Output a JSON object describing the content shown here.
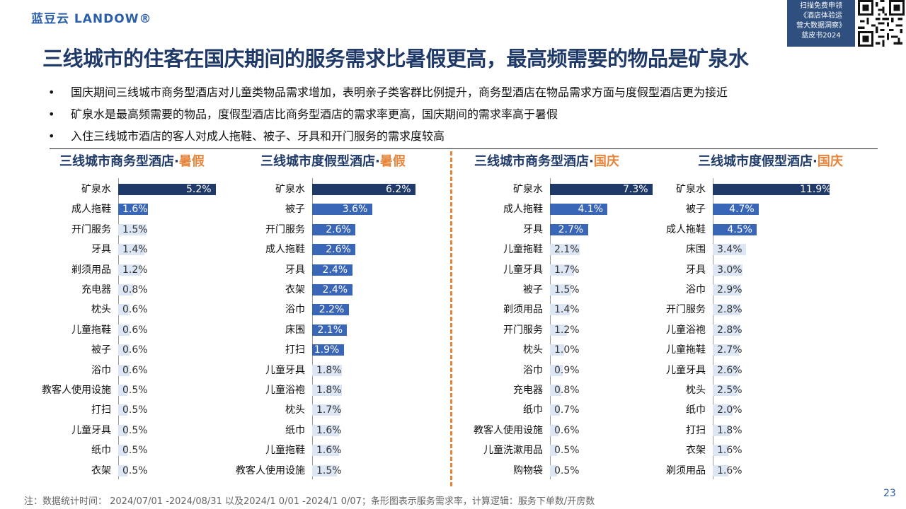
{
  "logo": "蓝豆云 LANDOW®",
  "promo": [
    "扫描免费申领",
    "《酒店体验运",
    "营大数据洞察》",
    "蓝皮书2024"
  ],
  "title": "三线城市的住客在国庆期间的服务需求比暑假更高，最高频需要的物品是矿泉水",
  "bullets": [
    "国庆期间三线城市商务型酒店对儿童类物品需求增加，表明亲子类客群比例提升，商务型酒店在物品需求方面与度假型酒店更为接近",
    "矿泉水是最高频需要的物品，度假型酒店比商务型酒店的需求率更高，国庆期间的需求率高于暑假",
    "入住三线城市酒店的客人对成人拖鞋、被子、牙具和开门服务的需求度较高"
  ],
  "colors": {
    "dark": "#1f3a68",
    "mid": "#3a66b8",
    "light": "#dce6f5",
    "accent": "#e8843a"
  },
  "chart_data": [
    {
      "type": "bar",
      "orientation": "horizontal",
      "title_main": "三线城市商务型酒店·",
      "title_accent": "暑假",
      "categories": [
        "矿泉水",
        "成人拖鞋",
        "开门服务",
        "牙具",
        "剃须用品",
        "充电器",
        "枕头",
        "儿童拖鞋",
        "被子",
        "浴巾",
        "教客人使用设施",
        "打扫",
        "儿童牙具",
        "纸巾",
        "衣架"
      ],
      "values": [
        5.2,
        1.6,
        1.5,
        1.4,
        1.2,
        0.8,
        0.6,
        0.6,
        0.6,
        0.6,
        0.5,
        0.5,
        0.5,
        0.5,
        0.5
      ],
      "labels": [
        "5.2%",
        "1.6%",
        "1.5%",
        "1.4%",
        "1.2%",
        "0.8%",
        "0.6%",
        "0.6%",
        "0.6%",
        "0.6%",
        "0.5%",
        "0.5%",
        "0.5%",
        "0.5%",
        "0.5%"
      ],
      "unit": "%"
    },
    {
      "type": "bar",
      "orientation": "horizontal",
      "title_main": "三线城市度假型酒店·",
      "title_accent": "暑假",
      "categories": [
        "矿泉水",
        "被子",
        "开门服务",
        "成人拖鞋",
        "牙具",
        "衣架",
        "浴巾",
        "床围",
        "打扫",
        "儿童牙具",
        "儿童浴袍",
        "枕头",
        "纸巾",
        "儿童拖鞋",
        "教客人使用设施"
      ],
      "values": [
        6.2,
        3.6,
        2.6,
        2.6,
        2.4,
        2.4,
        2.2,
        2.1,
        1.9,
        1.8,
        1.8,
        1.7,
        1.6,
        1.6,
        1.5
      ],
      "labels": [
        "6.2%",
        "3.6%",
        "2.6%",
        "2.6%",
        "2.4%",
        "2.4%",
        "2.2%",
        "2.1%",
        "1.9%",
        "1.8%",
        "1.8%",
        "1.7%",
        "1.6%",
        "1.6%",
        "1.5%"
      ],
      "unit": "%"
    },
    {
      "type": "bar",
      "orientation": "horizontal",
      "title_main": "三线城市商务型酒店·",
      "title_accent": "国庆",
      "categories": [
        "矿泉水",
        "成人拖鞋",
        "牙具",
        "儿童拖鞋",
        "儿童牙具",
        "被子",
        "剃须用品",
        "开门服务",
        "枕头",
        "浴巾",
        "充电器",
        "纸巾",
        "教客人使用设施",
        "儿童洗漱用品",
        "购物袋"
      ],
      "values": [
        7.3,
        4.1,
        2.7,
        2.1,
        1.7,
        1.5,
        1.4,
        1.2,
        1.0,
        0.9,
        0.8,
        0.7,
        0.6,
        0.5,
        0.5
      ],
      "labels": [
        "7.3%",
        "4.1%",
        "2.7%",
        "2.1%",
        "1.7%",
        "1.5%",
        "1.4%",
        "1.2%",
        "1.0%",
        "0.9%",
        "0.8%",
        "0.7%",
        "0.6%",
        "0.5%",
        "0.5%"
      ],
      "unit": "%"
    },
    {
      "type": "bar",
      "orientation": "horizontal",
      "title_main": "三线城市度假型酒店·",
      "title_accent": "国庆",
      "categories": [
        "矿泉水",
        "被子",
        "成人拖鞋",
        "床围",
        "牙具",
        "浴巾",
        "开门服务",
        "儿童浴袍",
        "儿童拖鞋",
        "儿童牙具",
        "枕头",
        "纸巾",
        "打扫",
        "衣架",
        "剃须用品"
      ],
      "values": [
        11.9,
        4.7,
        4.5,
        3.4,
        3.0,
        2.9,
        2.8,
        2.8,
        2.7,
        2.6,
        2.5,
        2.0,
        1.8,
        1.6,
        1.6
      ],
      "labels": [
        "11.9%",
        "4.7%",
        "4.5%",
        "3.4%",
        "3.0%",
        "2.9%",
        "2.8%",
        "2.8%",
        "2.7%",
        "2.6%",
        "2.5%",
        "2.0%",
        "1.8%",
        "1.6%",
        "1.6%"
      ],
      "unit": "%"
    }
  ],
  "note": "注：数据统计时间：  2024/07/01 -2024/08/31 以及2024/1 0/01 -2024/1 0/07；条形图表示服务需求率，计算逻辑：服务下单数/开房数",
  "page_number": "23"
}
